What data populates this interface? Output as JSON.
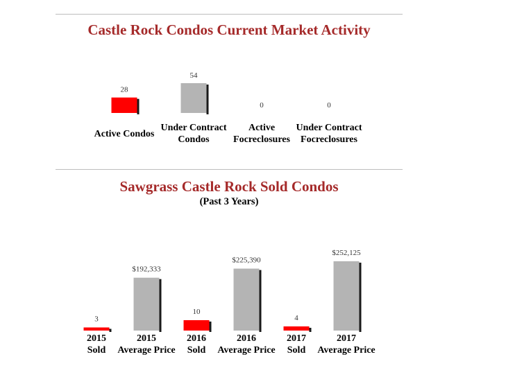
{
  "colors": {
    "title": "#a52a2a",
    "highlight": "#ff0000",
    "neutral": "#b4b4b4",
    "shadow": "#1a1a1a"
  },
  "chart_data": [
    {
      "type": "bar",
      "title": "Castle Rock Condos Current Market Activity",
      "subtitle": "",
      "categories": [
        "Active Condos",
        "Under Contract Condos",
        "Active Focreclosures",
        "Under Contract Focreclosures"
      ],
      "category_lines": [
        [
          "Active Condos"
        ],
        [
          "Under Contract",
          "Condos"
        ],
        [
          "Active",
          "Focreclosures"
        ],
        [
          "Under Contract",
          "Focreclosures"
        ]
      ],
      "values": [
        28,
        54,
        0,
        0
      ],
      "value_labels": [
        "28",
        "54",
        "0",
        "0"
      ],
      "bar_colors": [
        "highlight",
        "neutral",
        "neutral",
        "neutral"
      ],
      "ylim": [
        0,
        54
      ]
    },
    {
      "type": "bar",
      "title": "Sawgrass Castle Rock Sold Condos",
      "subtitle": "(Past 3 Years)",
      "categories": [
        "2015 Sold",
        "2015 Average Price",
        "2016 Sold",
        "2016 Average Price",
        "2017 Sold",
        "2017 Average Price"
      ],
      "category_lines": [
        [
          "2015",
          "Sold"
        ],
        [
          "2015",
          "Average Price"
        ],
        [
          "2016",
          "Sold"
        ],
        [
          "2016",
          "Average Price"
        ],
        [
          "2017",
          "Sold"
        ],
        [
          "2017",
          "Average Price"
        ]
      ],
      "values": [
        3,
        192333,
        10,
        225390,
        4,
        252125
      ],
      "value_labels": [
        "3",
        "$192,333",
        "10",
        "$225,390",
        "4",
        "$252,125"
      ],
      "bar_colors": [
        "highlight",
        "neutral",
        "highlight",
        "neutral",
        "highlight",
        "neutral"
      ]
    }
  ]
}
